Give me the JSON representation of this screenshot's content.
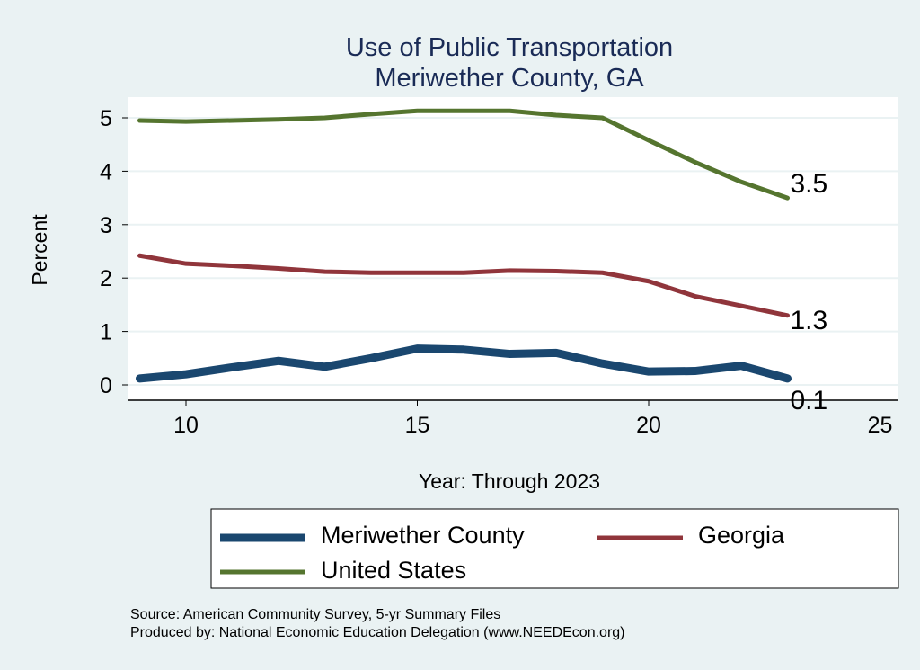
{
  "chart_data": {
    "type": "line",
    "title": "Use of Public Transportation",
    "subtitle": "Meriwether County, GA",
    "xlabel": "Year: Through 2023",
    "ylabel": "Percent",
    "xlim": [
      9,
      25
    ],
    "ylim": [
      0,
      5
    ],
    "xticks": [
      10,
      15,
      20,
      25
    ],
    "yticks": [
      0,
      1,
      2,
      3,
      4,
      5
    ],
    "grid": true,
    "legend_position": "bottom",
    "x": [
      9,
      10,
      11,
      12,
      13,
      14,
      15,
      16,
      17,
      18,
      19,
      20,
      21,
      22,
      23
    ],
    "series": [
      {
        "name": "Meriwether County",
        "color": "#1a476f",
        "width": 9,
        "values": [
          0.12,
          0.2,
          0.33,
          0.45,
          0.34,
          0.5,
          0.68,
          0.66,
          0.58,
          0.6,
          0.4,
          0.25,
          0.26,
          0.36,
          0.12
        ],
        "end_label": "0.1"
      },
      {
        "name": "Georgia",
        "color": "#90353b",
        "width": 5,
        "values": [
          2.42,
          2.27,
          2.23,
          2.18,
          2.12,
          2.1,
          2.1,
          2.1,
          2.14,
          2.13,
          2.1,
          1.94,
          1.66,
          1.48,
          1.3
        ],
        "end_label": "1.3"
      },
      {
        "name": "United States",
        "color": "#55752f",
        "width": 5,
        "values": [
          4.95,
          4.93,
          4.95,
          4.97,
          5.0,
          5.07,
          5.13,
          5.13,
          5.13,
          5.05,
          5.0,
          4.58,
          4.17,
          3.8,
          3.5
        ],
        "end_label": "3.5"
      }
    ],
    "notes": [
      "Source: American Community Survey, 5-yr Summary Files",
      "Produced by: National Economic Education Delegation (www.NEEDEcon.org)"
    ]
  }
}
